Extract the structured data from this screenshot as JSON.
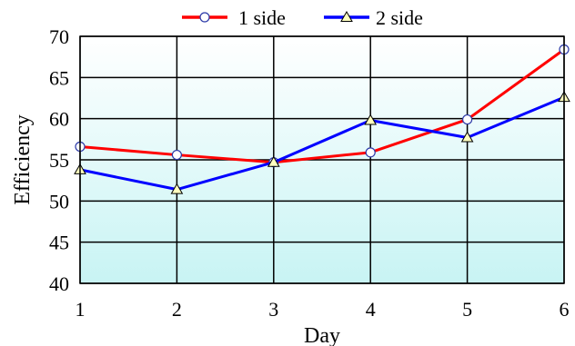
{
  "chart_data": {
    "type": "line",
    "xlabel": "Day",
    "ylabel": "Efficiency",
    "x": [
      1,
      2,
      3,
      4,
      5,
      6
    ],
    "xlim": [
      1,
      6
    ],
    "ylim": [
      40,
      70
    ],
    "yticks": [
      40,
      45,
      50,
      55,
      60,
      65,
      70
    ],
    "grid": true,
    "legend_position": "top",
    "series": [
      {
        "name": "1 side",
        "color": "#ff0000",
        "marker": "circle",
        "values": [
          56.6,
          55.6,
          54.7,
          55.9,
          59.9,
          68.4
        ]
      },
      {
        "name": "2 side",
        "color": "#0000ff",
        "marker": "triangle",
        "values": [
          53.8,
          51.4,
          54.7,
          59.8,
          57.7,
          62.6
        ]
      }
    ],
    "background_gradient": [
      "#ffffff",
      "#c8f4f4"
    ]
  }
}
